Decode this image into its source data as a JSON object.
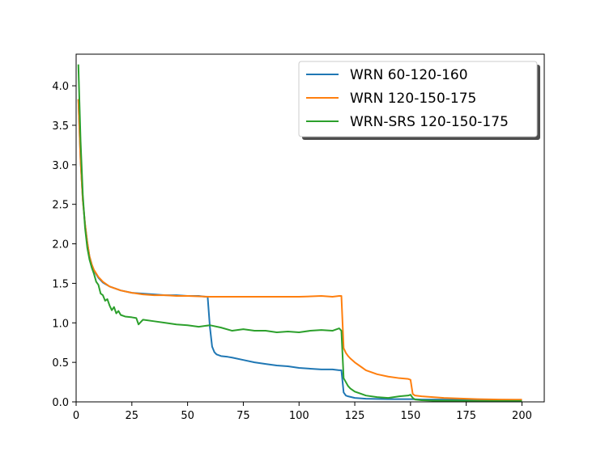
{
  "chart_data": {
    "type": "line",
    "title": "",
    "xlabel": "",
    "ylabel": "",
    "xlim": [
      0,
      210
    ],
    "ylim": [
      0,
      4.4
    ],
    "xticks": [
      0,
      25,
      50,
      75,
      100,
      125,
      150,
      175,
      200
    ],
    "yticks": [
      0.0,
      0.5,
      1.0,
      1.5,
      2.0,
      2.5,
      3.0,
      3.5,
      4.0
    ],
    "legend": "upper right",
    "grid": false,
    "series": [
      {
        "name": "WRN 60-120-160",
        "color": "#1f77b4",
        "x": [
          1,
          2,
          3,
          4,
          5,
          6,
          7,
          8,
          10,
          12,
          15,
          20,
          25,
          30,
          35,
          40,
          45,
          50,
          55,
          58,
          59,
          60,
          61,
          62,
          63,
          65,
          68,
          70,
          75,
          80,
          85,
          90,
          95,
          100,
          105,
          110,
          115,
          118,
          119,
          120,
          121,
          122,
          125,
          130,
          140,
          150,
          155,
          160,
          170,
          180,
          190,
          200
        ],
        "y": [
          3.83,
          3.05,
          2.55,
          2.25,
          2.02,
          1.84,
          1.74,
          1.66,
          1.57,
          1.51,
          1.46,
          1.41,
          1.38,
          1.37,
          1.36,
          1.35,
          1.35,
          1.34,
          1.34,
          1.33,
          1.33,
          0.95,
          0.7,
          0.63,
          0.6,
          0.58,
          0.57,
          0.56,
          0.53,
          0.5,
          0.48,
          0.46,
          0.45,
          0.43,
          0.42,
          0.41,
          0.41,
          0.4,
          0.4,
          0.12,
          0.08,
          0.07,
          0.05,
          0.04,
          0.035,
          0.035,
          0.03,
          0.03,
          0.028,
          0.027,
          0.026,
          0.025
        ]
      },
      {
        "name": "WRN 120-150-175",
        "color": "#ff7f0e",
        "x": [
          1,
          2,
          3,
          4,
          5,
          6,
          7,
          8,
          10,
          12,
          15,
          20,
          25,
          30,
          35,
          40,
          45,
          50,
          60,
          70,
          80,
          90,
          100,
          110,
          115,
          118,
          119,
          120,
          121,
          122,
          123,
          125,
          128,
          130,
          135,
          140,
          145,
          149,
          150,
          151,
          152,
          155,
          160,
          165,
          170,
          175,
          180,
          190,
          200
        ],
        "y": [
          3.83,
          3.05,
          2.55,
          2.25,
          2.02,
          1.84,
          1.74,
          1.67,
          1.58,
          1.52,
          1.46,
          1.41,
          1.38,
          1.36,
          1.35,
          1.35,
          1.34,
          1.34,
          1.33,
          1.33,
          1.33,
          1.33,
          1.33,
          1.34,
          1.33,
          1.34,
          1.34,
          0.68,
          0.62,
          0.58,
          0.55,
          0.5,
          0.44,
          0.4,
          0.35,
          0.32,
          0.3,
          0.29,
          0.28,
          0.1,
          0.08,
          0.07,
          0.06,
          0.05,
          0.045,
          0.04,
          0.035,
          0.03,
          0.028
        ]
      },
      {
        "name": "WRN-SRS 120-150-175",
        "color": "#2ca02c",
        "x": [
          1,
          2,
          3,
          4,
          5,
          6,
          7,
          8,
          9,
          10,
          11,
          12,
          13,
          14,
          15,
          16,
          17,
          18,
          19,
          20,
          22,
          25,
          27,
          28,
          30,
          35,
          40,
          45,
          50,
          55,
          60,
          65,
          70,
          75,
          80,
          85,
          90,
          95,
          100,
          105,
          110,
          115,
          118,
          119,
          120,
          121,
          122,
          123,
          125,
          128,
          130,
          135,
          140,
          145,
          149,
          150,
          151,
          152,
          155,
          160,
          170,
          180,
          190,
          200
        ],
        "y": [
          4.27,
          3.3,
          2.62,
          2.2,
          1.95,
          1.8,
          1.7,
          1.62,
          1.52,
          1.48,
          1.37,
          1.35,
          1.28,
          1.3,
          1.22,
          1.16,
          1.2,
          1.12,
          1.15,
          1.1,
          1.08,
          1.07,
          1.06,
          0.98,
          1.04,
          1.02,
          1.0,
          0.98,
          0.97,
          0.95,
          0.97,
          0.94,
          0.9,
          0.92,
          0.9,
          0.9,
          0.88,
          0.89,
          0.88,
          0.9,
          0.91,
          0.9,
          0.93,
          0.9,
          0.3,
          0.25,
          0.2,
          0.17,
          0.13,
          0.1,
          0.08,
          0.06,
          0.05,
          0.07,
          0.08,
          0.09,
          0.05,
          0.03,
          0.02,
          0.015,
          0.015,
          0.012,
          0.012,
          0.012
        ]
      }
    ]
  }
}
